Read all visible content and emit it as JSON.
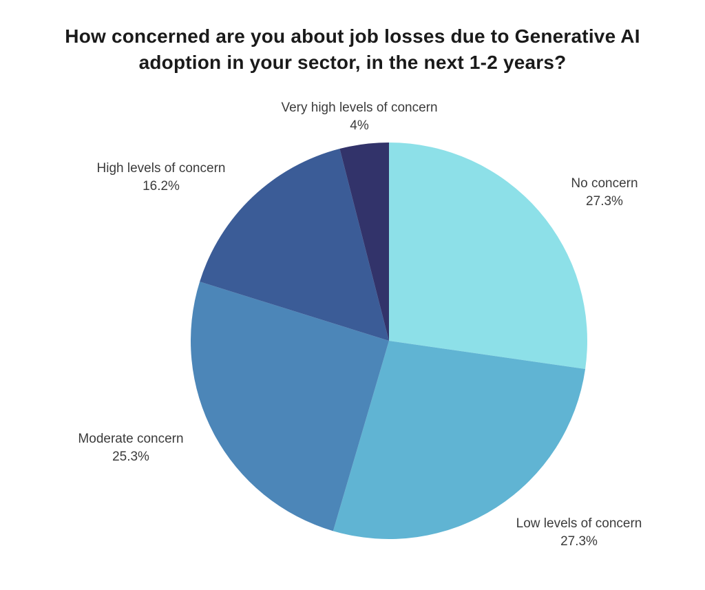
{
  "page": {
    "background": "#ffffff"
  },
  "chart_data": {
    "type": "pie",
    "title": "How concerned are you about job losses due to Generative AI adoption in your sector, in the next 1-2 years?",
    "title_color": "#1a1a1a",
    "label_color": "#3b3b3b",
    "legend_position": "none",
    "data_labels": "outside",
    "start_angle_deg": 0,
    "direction": "clockwise",
    "slices": [
      {
        "label": "No concern",
        "value": 27.3,
        "pct_label": "27.3%",
        "color": "#8DE0E8"
      },
      {
        "label": "Low levels of concern",
        "value": 27.3,
        "pct_label": "27.3%",
        "color": "#60B4D3"
      },
      {
        "label": "Moderate concern",
        "value": 25.3,
        "pct_label": "25.3%",
        "color": "#4C86B8"
      },
      {
        "label": "High levels of concern",
        "value": 16.2,
        "pct_label": "16.2%",
        "color": "#3B5C97"
      },
      {
        "label": "Very high levels of concern",
        "value": 4,
        "pct_label": "4%",
        "color": "#32336A"
      }
    ]
  }
}
